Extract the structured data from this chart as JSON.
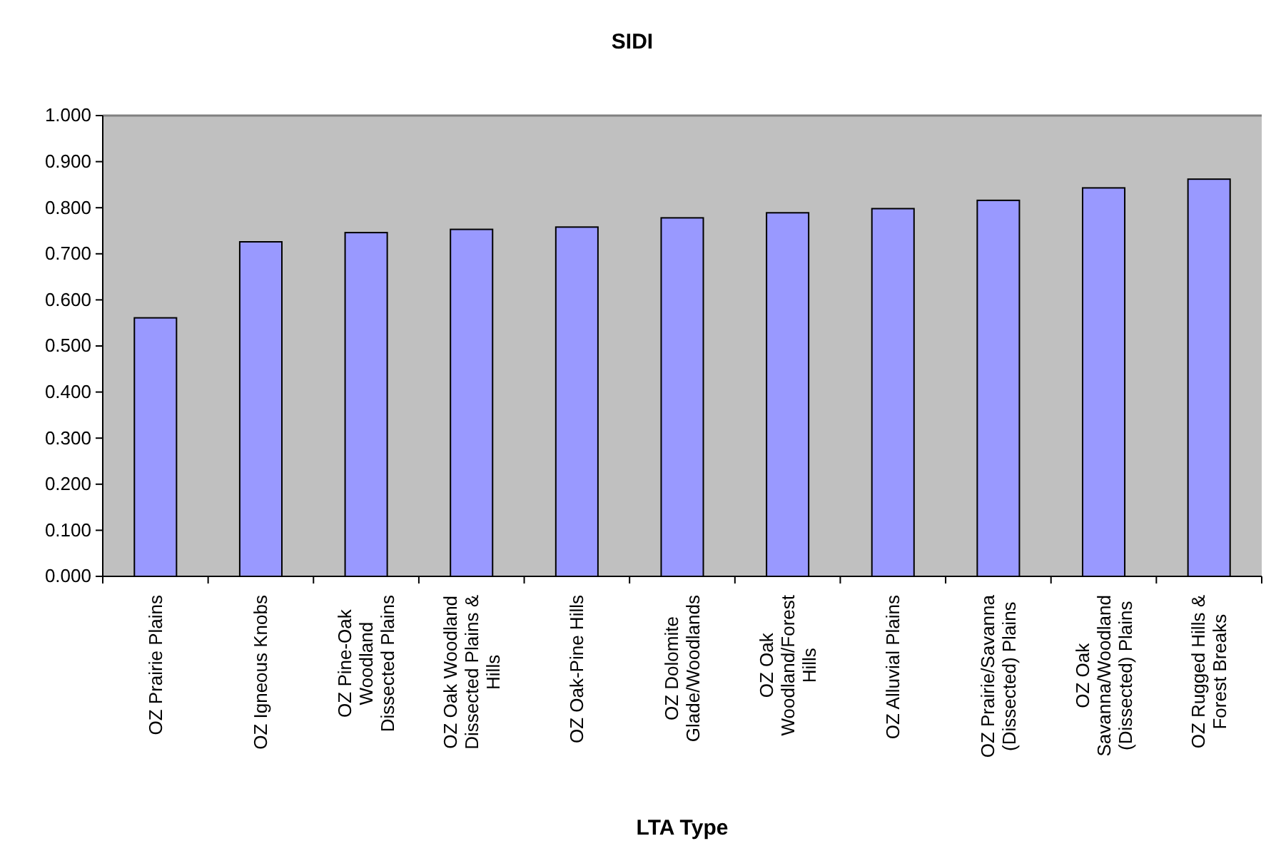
{
  "chart_data": {
    "type": "bar",
    "title": "SIDI",
    "xlabel": "LTA Type",
    "categories": [
      "OZ Prairie Plains",
      "OZ Igneous Knobs",
      "OZ Pine-Oak Woodland Dissected Plains",
      "OZ Oak Woodland Dissected Plains & Hills",
      "OZ Oak-Pine Hills",
      "OZ Dolomite Glade/Woodlands",
      "OZ Oak Woodland/Forest Hills",
      "OZ Alluvial Plains",
      "OZ Prairie/Savanna (Dissected) Plains",
      "OZ Oak Savanna/Woodland (Dissected) Plains",
      "OZ Rugged Hills & Forest Breaks"
    ],
    "values": [
      0.561,
      0.726,
      0.746,
      0.753,
      0.758,
      0.778,
      0.789,
      0.798,
      0.816,
      0.843,
      0.862
    ],
    "color": "#9999ff",
    "ylim": [
      0,
      1
    ],
    "yticks": [
      {
        "value": 0,
        "label": "0.000"
      },
      {
        "value": 0.1,
        "label": "0.100"
      },
      {
        "value": 0.2,
        "label": "0.200"
      },
      {
        "value": 0.3,
        "label": "0.300"
      },
      {
        "value": 0.4,
        "label": "0.400"
      },
      {
        "value": 0.5,
        "label": "0.500"
      },
      {
        "value": 0.6,
        "label": "0.600"
      },
      {
        "value": 0.7,
        "label": "0.700"
      },
      {
        "value": 0.8,
        "label": "0.800"
      },
      {
        "value": 0.9,
        "label": "0.900"
      },
      {
        "value": 1,
        "label": "1.000"
      }
    ],
    "grid": false,
    "legend": false
  }
}
